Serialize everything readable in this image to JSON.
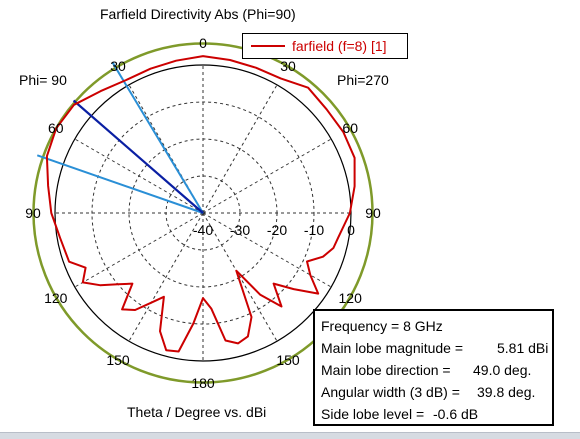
{
  "chart_data": {
    "type": "polar",
    "title": "Farfield Directivity Abs (Phi=90)",
    "legend": {
      "entries": [
        {
          "name": "farfield (f=8) [1]",
          "color": "#cc0000"
        }
      ],
      "position": "top-right"
    },
    "phi_labels": {
      "left": "Phi= 90",
      "right": "Phi=270"
    },
    "xlabel": "Theta / Degree vs. dBi",
    "angle_ticks": [
      "0",
      "30",
      "60",
      "90",
      "120",
      "150",
      "180",
      "150",
      "120",
      "90",
      "60",
      "30"
    ],
    "radial_ticks": [
      "-40",
      "-30",
      "-20",
      "-10",
      "0"
    ],
    "radial_range_dbi": [
      -40,
      10
    ],
    "grid": true,
    "reference_circle_dbi": 5.81,
    "reference_circle_color": "#7f9a2a",
    "grid_color": "#333333",
    "series": [
      {
        "name": "farfield (f=8) [1]",
        "color": "#cc0000",
        "theta_deg": [
          0,
          10,
          20,
          30,
          40,
          50,
          60,
          70,
          80,
          90,
          100,
          110,
          115,
          120,
          125,
          130,
          135,
          140,
          145,
          150,
          155,
          160,
          165,
          170,
          175,
          180,
          185,
          190,
          195,
          200,
          205,
          210,
          215,
          220,
          225,
          230,
          235,
          240,
          245,
          250,
          255,
          260,
          270,
          280,
          290,
          300,
          310,
          320,
          330,
          340,
          350,
          360
        ],
        "dbi": [
          2.4,
          1.8,
          1.5,
          1.5,
          3.0,
          5.5,
          5.8,
          4.9,
          2.5,
          1.0,
          -0.8,
          -1.5,
          -5.0,
          -2.5,
          -6.0,
          -10.0,
          -13.0,
          -6.0,
          -8.0,
          -12.0,
          -15.0,
          -6.0,
          -1.6,
          -2.0,
          -10.0,
          -17.0,
          -14.0,
          -5.0,
          -3.5,
          -4.5,
          -9.0,
          -22.0,
          -13.0,
          -7.0,
          -13.0,
          -8.0,
          -2.0,
          -6.5,
          -9.0,
          -5.5,
          -3.5,
          -2.8,
          -0.3,
          1.6,
          3.6,
          3.8,
          3.6,
          4.2,
          2.0,
          1.8,
          2.0,
          2.4
        ]
      }
    ],
    "markers": {
      "main_lobe_direction_deg": 49.0,
      "main_lobe_color": "#0a1fa3",
      "beamwidth_edges_deg": [
        31,
        70.8
      ],
      "beamwidth_color": "#2a8fd6"
    }
  },
  "info": {
    "rows": [
      {
        "label": "Frequency = 8 GHz",
        "value": ""
      },
      {
        "label": "Main lobe magnitude =",
        "value": "5.81 dBi"
      },
      {
        "label": "Main lobe direction =",
        "value": "49.0 deg."
      },
      {
        "label": "Angular width (3 dB) =",
        "value": "39.8 deg."
      },
      {
        "label": "Side lobe level =",
        "value": "-0.6 dB"
      }
    ]
  }
}
